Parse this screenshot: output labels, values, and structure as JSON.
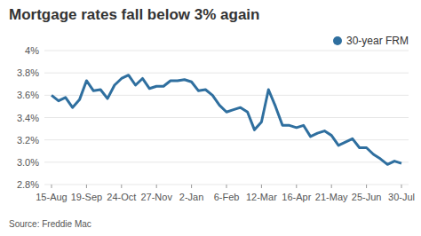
{
  "chart_data": {
    "type": "line",
    "title": "Mortgage rates fall below 3% again",
    "source": "Source: Freddie Mac",
    "categories": [
      "15-Aug",
      null,
      null,
      null,
      null,
      "19-Sep",
      null,
      null,
      null,
      null,
      "24-Oct",
      null,
      null,
      null,
      null,
      "27-Nov",
      null,
      null,
      null,
      null,
      "2-Jan",
      null,
      null,
      null,
      null,
      "6-Feb",
      null,
      null,
      null,
      null,
      "12-Mar",
      null,
      null,
      null,
      null,
      "16-Apr",
      null,
      null,
      null,
      null,
      "21-May",
      null,
      null,
      null,
      null,
      "25-Jun",
      null,
      null,
      null,
      null,
      "30-Jul"
    ],
    "series": [
      {
        "name": "30-year FRM",
        "color": "#2f6f9f",
        "marker": "none",
        "line_style": "solid",
        "values": [
          3.6,
          3.55,
          3.58,
          3.49,
          3.56,
          3.73,
          3.64,
          3.65,
          3.57,
          3.69,
          3.75,
          3.78,
          3.69,
          3.75,
          3.66,
          3.68,
          3.68,
          3.73,
          3.73,
          3.74,
          3.72,
          3.64,
          3.65,
          3.6,
          3.51,
          3.45,
          3.47,
          3.49,
          3.45,
          3.29,
          3.36,
          3.65,
          3.5,
          3.33,
          3.33,
          3.31,
          3.33,
          3.23,
          3.26,
          3.28,
          3.24,
          3.15,
          3.18,
          3.21,
          3.13,
          3.13,
          3.07,
          3.03,
          2.98,
          3.01,
          2.99
        ]
      }
    ],
    "ylim": [
      2.8,
      4.0
    ],
    "yticks": [
      {
        "value": 2.8,
        "label": "2.8%"
      },
      {
        "value": 3.0,
        "label": "3.0%"
      },
      {
        "value": 3.2,
        "label": "3.2%"
      },
      {
        "value": 3.4,
        "label": "3.4%"
      },
      {
        "value": 3.6,
        "label": "3.6%"
      },
      {
        "value": 3.8,
        "label": "3.8%"
      },
      {
        "value": 4.0,
        "label": "4%"
      }
    ],
    "grid": true,
    "legend": "top-right"
  }
}
